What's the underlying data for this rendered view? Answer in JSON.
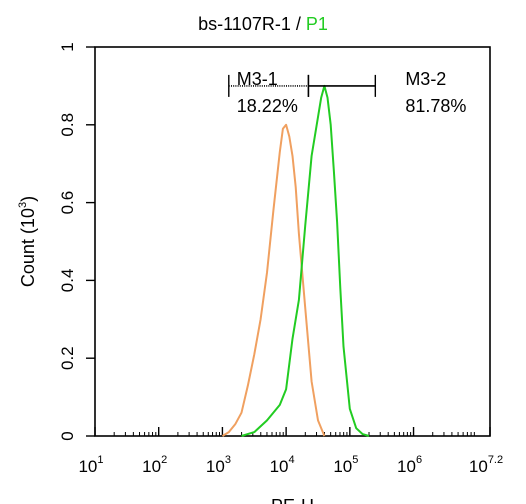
{
  "title": {
    "sample": "bs-1107R-1 / ",
    "gate": "P1",
    "gate_color": "#22cc22"
  },
  "chart_data": {
    "type": "line",
    "xlabel": "PE-H",
    "ylabel": "Count (10^3)",
    "ylabel_base": "Count  (10",
    "ylabel_exp": "3",
    "ylabel_close": ")",
    "x_scale": "log",
    "xlim": [
      1,
      7.2
    ],
    "ylim": [
      0,
      1
    ],
    "x_ticks": [
      {
        "base": "10",
        "exp": "1",
        "value": 1
      },
      {
        "base": "10",
        "exp": "2",
        "value": 2
      },
      {
        "base": "10",
        "exp": "3",
        "value": 3
      },
      {
        "base": "10",
        "exp": "4",
        "value": 4
      },
      {
        "base": "10",
        "exp": "5",
        "value": 5
      },
      {
        "base": "10",
        "exp": "6",
        "value": 6
      },
      {
        "base": "10",
        "exp": "7.2",
        "value": 7.2
      }
    ],
    "y_ticks": [
      {
        "label": "0",
        "value": 0
      },
      {
        "label": "0.2",
        "value": 0.2
      },
      {
        "label": "0.4",
        "value": 0.4
      },
      {
        "label": "0.6",
        "value": 0.6
      },
      {
        "label": "0.8",
        "value": 0.8
      },
      {
        "label": "1",
        "value": 1
      }
    ],
    "series": [
      {
        "color": "#f0a060",
        "x": [
          3.0,
          3.1,
          3.2,
          3.3,
          3.4,
          3.5,
          3.6,
          3.7,
          3.8,
          3.9,
          3.95,
          4.0,
          4.05,
          4.1,
          4.15,
          4.2,
          4.3,
          4.4,
          4.5,
          4.6
        ],
        "y": [
          0.0,
          0.01,
          0.03,
          0.06,
          0.13,
          0.21,
          0.3,
          0.42,
          0.58,
          0.73,
          0.79,
          0.8,
          0.77,
          0.72,
          0.64,
          0.52,
          0.33,
          0.14,
          0.04,
          0.0
        ]
      },
      {
        "color": "#22cc22",
        "x": [
          3.3,
          3.5,
          3.7,
          3.9,
          4.0,
          4.1,
          4.2,
          4.3,
          4.4,
          4.5,
          4.55,
          4.6,
          4.65,
          4.7,
          4.75,
          4.8,
          4.85,
          4.9,
          5.0,
          5.1,
          5.2,
          5.3
        ],
        "y": [
          0.0,
          0.01,
          0.04,
          0.08,
          0.12,
          0.25,
          0.35,
          0.54,
          0.72,
          0.82,
          0.87,
          0.9,
          0.87,
          0.8,
          0.68,
          0.55,
          0.38,
          0.23,
          0.07,
          0.02,
          0.005,
          0.0
        ]
      }
    ],
    "gates": [
      {
        "name": "M3-1",
        "percent": "18.22%",
        "x_start": 3.1,
        "x_end": 4.35,
        "y": 0.9
      },
      {
        "name": "M3-2",
        "percent": "81.78%",
        "x_start": 4.35,
        "x_end": 5.4,
        "y": 0.9
      }
    ]
  }
}
